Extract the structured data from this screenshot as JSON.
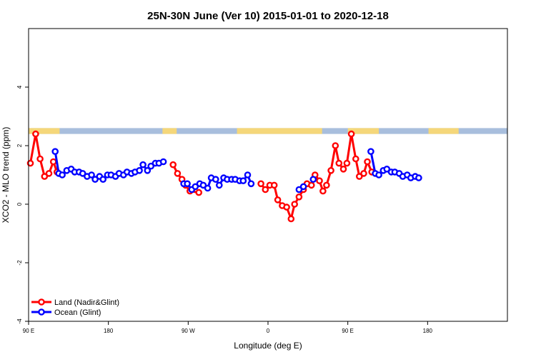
{
  "chart_data": {
    "type": "line",
    "title": "25N-30N June (Ver 10)   2015-01-01 to 2020-12-18",
    "xlabel": "Longitude (deg E)",
    "ylabel": "XCO2 - MLO trend (ppm)",
    "xlim": [
      90,
      630
    ],
    "ylim": [
      -4,
      6
    ],
    "x_ticks": [
      {
        "value": 90,
        "label": "90 E"
      },
      {
        "value": 180,
        "label": "180"
      },
      {
        "value": 270,
        "label": "90 W"
      },
      {
        "value": 360,
        "label": "0"
      },
      {
        "value": 450,
        "label": "90 E"
      },
      {
        "value": 540,
        "label": "180"
      }
    ],
    "y_ticks": [
      {
        "value": -4,
        "label": "-4"
      },
      {
        "value": -2,
        "label": "-2"
      },
      {
        "value": 0,
        "label": "0"
      },
      {
        "value": 2,
        "label": "2"
      },
      {
        "value": 4,
        "label": "4"
      }
    ],
    "grid": false,
    "legend_position": "bottom-left",
    "land_ocean_strip": {
      "y_range": [
        2.4,
        2.6
      ],
      "land_color": "#F5D77A",
      "ocean_color": "#A8BEDD",
      "land_lon_intervals": [
        [
          90,
          125
        ],
        [
          241,
          257
        ],
        [
          325,
          421
        ],
        [
          450,
          485
        ],
        [
          541,
          575
        ],
        [
          631,
          640
        ]
      ]
    },
    "series": [
      {
        "name": "Land (Nadir&Glint)",
        "color": "#FF0000",
        "points": [
          {
            "lon": 92,
            "v": 1.4
          },
          {
            "lon": 98,
            "v": 2.4
          },
          {
            "lon": 103,
            "v": 1.55
          },
          {
            "lon": 108,
            "v": 0.95
          },
          {
            "lon": 113,
            "v": 1.05
          },
          {
            "lon": 118,
            "v": 1.45
          },
          {
            "lon": 122,
            "v": 1.1
          },
          null,
          {
            "lon": 253,
            "v": 1.35
          },
          {
            "lon": 258,
            "v": 1.05
          },
          {
            "lon": 263,
            "v": 0.85
          },
          {
            "lon": 267,
            "v": 0.65
          },
          {
            "lon": 272,
            "v": 0.45
          },
          {
            "lon": 282,
            "v": 0.4
          },
          null,
          {
            "lon": 352,
            "v": 0.7
          },
          {
            "lon": 357,
            "v": 0.5
          },
          {
            "lon": 362,
            "v": 0.65
          },
          {
            "lon": 367,
            "v": 0.65
          },
          {
            "lon": 371,
            "v": 0.15
          },
          {
            "lon": 376,
            "v": -0.05
          },
          {
            "lon": 381,
            "v": -0.1
          },
          {
            "lon": 386,
            "v": -0.5
          },
          {
            "lon": 390,
            "v": 0.0
          },
          {
            "lon": 395,
            "v": 0.25
          },
          {
            "lon": 400,
            "v": 0.5
          },
          {
            "lon": 404,
            "v": 0.7
          },
          {
            "lon": 409,
            "v": 0.65
          },
          {
            "lon": 413,
            "v": 1.0
          },
          {
            "lon": 418,
            "v": 0.8
          },
          {
            "lon": 422,
            "v": 0.45
          },
          {
            "lon": 426,
            "v": 0.65
          },
          {
            "lon": 431,
            "v": 1.15
          },
          {
            "lon": 436,
            "v": 2.0
          },
          {
            "lon": 440,
            "v": 1.4
          },
          {
            "lon": 445,
            "v": 1.2
          },
          {
            "lon": 449,
            "v": 1.4
          },
          {
            "lon": 454,
            "v": 2.4
          },
          {
            "lon": 459,
            "v": 1.55
          },
          {
            "lon": 463,
            "v": 0.95
          },
          {
            "lon": 468,
            "v": 1.05
          },
          {
            "lon": 472,
            "v": 1.45
          },
          {
            "lon": 477,
            "v": 1.1
          }
        ]
      },
      {
        "name": "Ocean (Glint)",
        "color": "#0000FF",
        "points": [
          {
            "lon": 120,
            "v": 1.8
          },
          {
            "lon": 124,
            "v": 1.05
          },
          {
            "lon": 128,
            "v": 1.0
          },
          {
            "lon": 133,
            "v": 1.15
          },
          {
            "lon": 138,
            "v": 1.2
          },
          {
            "lon": 142,
            "v": 1.1
          },
          {
            "lon": 147,
            "v": 1.1
          },
          {
            "lon": 151,
            "v": 1.05
          },
          {
            "lon": 156,
            "v": 0.95
          },
          {
            "lon": 161,
            "v": 1.0
          },
          {
            "lon": 165,
            "v": 0.85
          },
          {
            "lon": 170,
            "v": 0.95
          },
          {
            "lon": 174,
            "v": 0.85
          },
          {
            "lon": 179,
            "v": 1.0
          },
          {
            "lon": 183,
            "v": 1.0
          },
          {
            "lon": 188,
            "v": 0.95
          },
          {
            "lon": 192,
            "v": 1.05
          },
          {
            "lon": 197,
            "v": 1.0
          },
          {
            "lon": 201,
            "v": 1.1
          },
          {
            "lon": 206,
            "v": 1.05
          },
          {
            "lon": 210,
            "v": 1.1
          },
          {
            "lon": 215,
            "v": 1.15
          },
          {
            "lon": 219,
            "v": 1.35
          },
          {
            "lon": 224,
            "v": 1.15
          },
          {
            "lon": 228,
            "v": 1.3
          },
          {
            "lon": 233,
            "v": 1.4
          },
          {
            "lon": 237,
            "v": 1.4
          },
          {
            "lon": 242,
            "v": 1.45
          },
          null,
          {
            "lon": 265,
            "v": 0.7
          },
          {
            "lon": 269,
            "v": 0.7
          },
          {
            "lon": 274,
            "v": 0.5
          },
          {
            "lon": 278,
            "v": 0.6
          },
          {
            "lon": 283,
            "v": 0.7
          },
          {
            "lon": 287,
            "v": 0.65
          },
          {
            "lon": 292,
            "v": 0.55
          },
          {
            "lon": 296,
            "v": 0.9
          },
          {
            "lon": 301,
            "v": 0.85
          },
          {
            "lon": 305,
            "v": 0.65
          },
          {
            "lon": 310,
            "v": 0.9
          },
          {
            "lon": 314,
            "v": 0.85
          },
          {
            "lon": 319,
            "v": 0.85
          },
          {
            "lon": 323,
            "v": 0.85
          },
          {
            "lon": 328,
            "v": 0.8
          },
          {
            "lon": 332,
            "v": 0.8
          },
          {
            "lon": 337,
            "v": 1.0
          },
          {
            "lon": 341,
            "v": 0.7
          },
          null,
          {
            "lon": 395,
            "v": 0.5
          },
          {
            "lon": 400,
            "v": 0.6
          },
          null,
          {
            "lon": 411,
            "v": 0.85
          },
          null,
          {
            "lon": 476,
            "v": 1.8
          },
          {
            "lon": 481,
            "v": 1.05
          },
          {
            "lon": 485,
            "v": 1.0
          },
          {
            "lon": 490,
            "v": 1.15
          },
          {
            "lon": 494,
            "v": 1.2
          },
          {
            "lon": 499,
            "v": 1.1
          },
          {
            "lon": 503,
            "v": 1.1
          },
          {
            "lon": 508,
            "v": 1.05
          },
          {
            "lon": 512,
            "v": 0.95
          },
          {
            "lon": 517,
            "v": 1.0
          },
          {
            "lon": 521,
            "v": 0.9
          },
          {
            "lon": 526,
            "v": 0.95
          },
          {
            "lon": 530,
            "v": 0.9
          }
        ]
      }
    ]
  }
}
